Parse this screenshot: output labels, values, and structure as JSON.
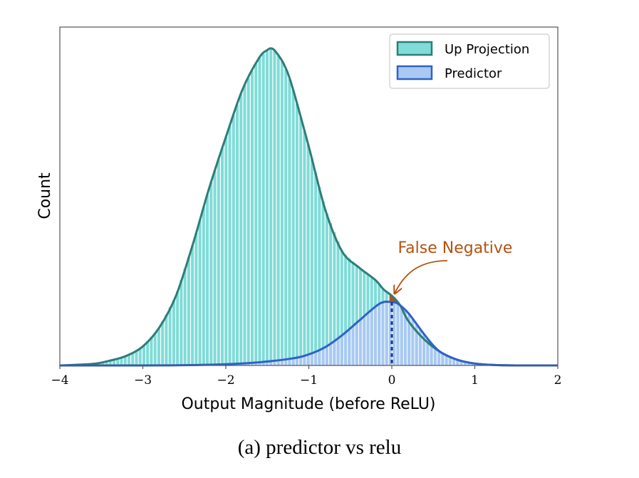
{
  "caption": "(a) predictor vs relu",
  "colors": {
    "up_fill": "#7fdcd8",
    "up_line": "#2e7d78",
    "pred_fill": "#a9c9f3",
    "pred_line": "#2f63c6",
    "annotation": "#b5520f",
    "threshold": "#1f3f8f"
  },
  "chart_data": {
    "type": "area",
    "xlabel": "Output Magnitude (before ReLU)",
    "ylabel": "Count",
    "xlim": [
      -4,
      2
    ],
    "xticks": [
      -4,
      -3,
      -2,
      -1,
      0,
      1,
      2
    ],
    "xtick_labels": [
      "−4",
      "−3",
      "−2",
      "−1",
      "0",
      "1",
      "2"
    ],
    "yticks": [],
    "grid": false,
    "legend": {
      "placement": "top-right",
      "entries": [
        "Up Projection",
        "Predictor"
      ]
    },
    "series": [
      {
        "name": "Up Projection",
        "x": [
          -4.0,
          -3.6,
          -3.4,
          -3.2,
          -3.0,
          -2.8,
          -2.6,
          -2.4,
          -2.2,
          -2.0,
          -1.8,
          -1.6,
          -1.5,
          -1.45,
          -1.4,
          -1.3,
          -1.2,
          -1.0,
          -0.8,
          -0.6,
          -0.4,
          -0.2,
          -0.1,
          0.0,
          0.1,
          0.2,
          0.4,
          0.6,
          0.8,
          1.0,
          1.2,
          1.5,
          2.0
        ],
        "y": [
          0.0,
          0.005,
          0.015,
          0.03,
          0.06,
          0.12,
          0.22,
          0.38,
          0.56,
          0.72,
          0.87,
          0.97,
          0.995,
          1.0,
          0.99,
          0.95,
          0.88,
          0.69,
          0.49,
          0.36,
          0.31,
          0.27,
          0.24,
          0.22,
          0.19,
          0.14,
          0.08,
          0.04,
          0.017,
          0.006,
          0.002,
          0.0,
          0.0
        ]
      },
      {
        "name": "Predictor",
        "x": [
          -4.0,
          -3.0,
          -2.5,
          -2.0,
          -1.6,
          -1.2,
          -1.0,
          -0.8,
          -0.6,
          -0.4,
          -0.2,
          -0.1,
          0.0,
          0.05,
          0.1,
          0.2,
          0.3,
          0.4,
          0.5,
          0.6,
          0.8,
          1.0,
          1.2,
          1.5,
          2.0
        ],
        "y": [
          0.0,
          0.0,
          0.001,
          0.004,
          0.01,
          0.022,
          0.035,
          0.058,
          0.095,
          0.14,
          0.185,
          0.2,
          0.2,
          0.198,
          0.19,
          0.165,
          0.13,
          0.095,
          0.063,
          0.04,
          0.017,
          0.006,
          0.002,
          0.0,
          0.0
        ]
      }
    ],
    "threshold_x": 0,
    "annotation": {
      "text": "False Negative",
      "x": 0.0,
      "y": 0.22
    }
  }
}
